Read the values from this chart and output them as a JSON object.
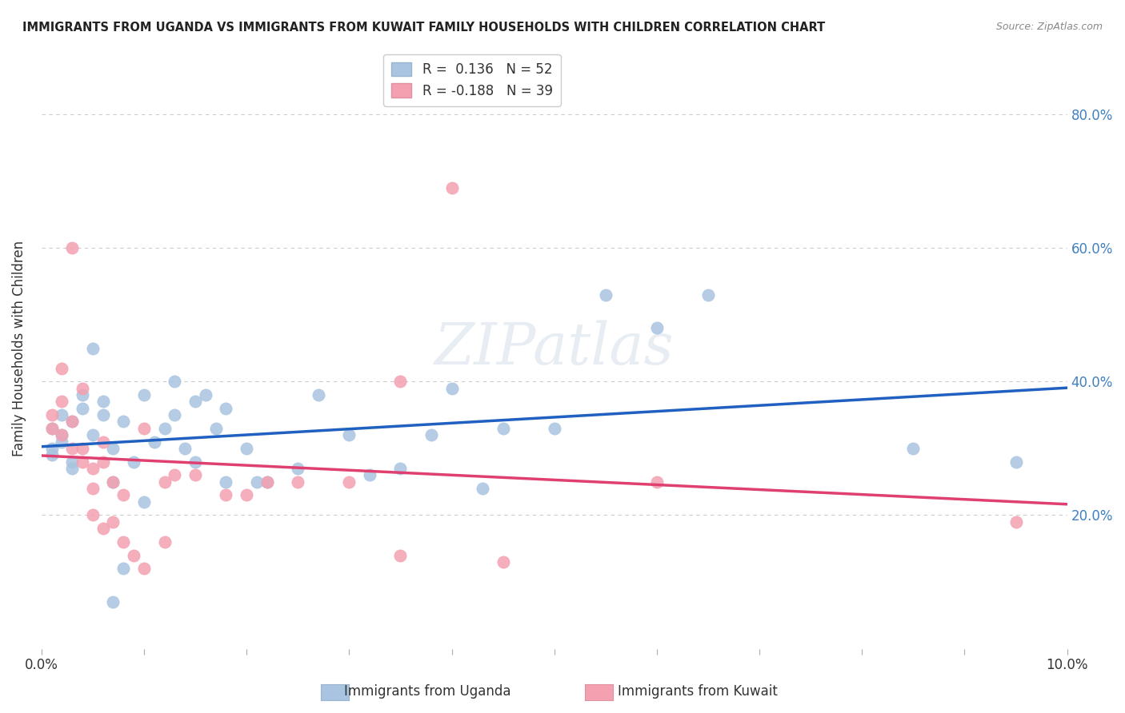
{
  "title": "IMMIGRANTS FROM UGANDA VS IMMIGRANTS FROM KUWAIT FAMILY HOUSEHOLDS WITH CHILDREN CORRELATION CHART",
  "source": "Source: ZipAtlas.com",
  "xlabel_bottom": "",
  "ylabel": "Family Households with Children",
  "xaxis_label_uganda": "Immigrants from Uganda",
  "xaxis_label_kuwait": "Immigrants from Kuwait",
  "xlim": [
    0.0,
    0.1
  ],
  "ylim": [
    0.0,
    0.9
  ],
  "xtick_labels": [
    "0.0%",
    "",
    "",
    "",
    "",
    "",
    "",
    "",
    "",
    "",
    "10.0%"
  ],
  "ytick_labels_left": [],
  "ytick_labels_right": [
    "80.0%",
    "60.0%",
    "40.0%",
    "20.0%"
  ],
  "ytick_positions_right": [
    0.8,
    0.6,
    0.4,
    0.2
  ],
  "grid_dashes": [
    4,
    4
  ],
  "legend_R_uganda": "R =  0.136",
  "legend_N_uganda": "N = 52",
  "legend_R_kuwait": "R = -0.188",
  "legend_N_kuwait": "N = 39",
  "color_uganda": "#a8c4e0",
  "color_kuwait": "#f4a0b0",
  "color_line_uganda": "#2060c0",
  "color_line_kuwait": "#e04070",
  "watermark": "ZIPatlas",
  "uganda_x": [
    0.001,
    0.002,
    0.001,
    0.002,
    0.003,
    0.002,
    0.001,
    0.003,
    0.004,
    0.003,
    0.005,
    0.004,
    0.005,
    0.006,
    0.007,
    0.006,
    0.008,
    0.007,
    0.009,
    0.01,
    0.012,
    0.013,
    0.014,
    0.015,
    0.016,
    0.017,
    0.018,
    0.02,
    0.022,
    0.025,
    0.027,
    0.03,
    0.032,
    0.035,
    0.038,
    0.04,
    0.043,
    0.045,
    0.05,
    0.055,
    0.06,
    0.065,
    0.007,
    0.008,
    0.01,
    0.011,
    0.013,
    0.015,
    0.018,
    0.021,
    0.085,
    0.095
  ],
  "uganda_y": [
    0.33,
    0.31,
    0.29,
    0.35,
    0.28,
    0.32,
    0.3,
    0.27,
    0.36,
    0.34,
    0.45,
    0.38,
    0.32,
    0.35,
    0.3,
    0.37,
    0.34,
    0.25,
    0.28,
    0.22,
    0.33,
    0.35,
    0.3,
    0.28,
    0.38,
    0.33,
    0.36,
    0.3,
    0.25,
    0.27,
    0.38,
    0.32,
    0.26,
    0.27,
    0.32,
    0.39,
    0.24,
    0.33,
    0.33,
    0.53,
    0.48,
    0.53,
    0.07,
    0.12,
    0.38,
    0.31,
    0.4,
    0.37,
    0.25,
    0.25,
    0.3,
    0.28
  ],
  "kuwait_x": [
    0.001,
    0.002,
    0.001,
    0.003,
    0.002,
    0.004,
    0.003,
    0.005,
    0.004,
    0.006,
    0.005,
    0.007,
    0.006,
    0.008,
    0.009,
    0.01,
    0.012,
    0.013,
    0.015,
    0.018,
    0.02,
    0.022,
    0.025,
    0.03,
    0.035,
    0.002,
    0.003,
    0.004,
    0.005,
    0.006,
    0.007,
    0.008,
    0.035,
    0.04,
    0.045,
    0.06,
    0.095,
    0.01,
    0.012
  ],
  "kuwait_y": [
    0.33,
    0.32,
    0.35,
    0.3,
    0.42,
    0.39,
    0.34,
    0.27,
    0.28,
    0.31,
    0.24,
    0.25,
    0.28,
    0.23,
    0.14,
    0.12,
    0.25,
    0.26,
    0.26,
    0.23,
    0.23,
    0.25,
    0.25,
    0.25,
    0.4,
    0.37,
    0.6,
    0.3,
    0.2,
    0.18,
    0.19,
    0.16,
    0.14,
    0.69,
    0.13,
    0.25,
    0.19,
    0.33,
    0.16
  ]
}
